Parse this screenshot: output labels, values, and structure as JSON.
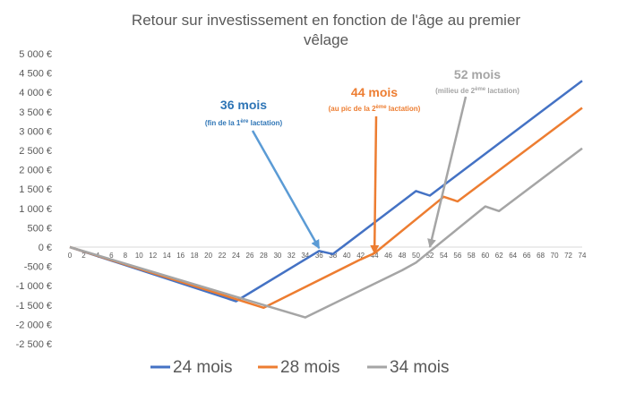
{
  "chart_data": {
    "type": "line",
    "title": "Retour sur investissement en fonction de l'âge au premier vêlage",
    "title_lines": [
      "Retour sur investissement en fonction de l'âge au premier",
      "vêlage"
    ],
    "xlabel": "",
    "ylabel": "",
    "xlim": [
      0,
      74
    ],
    "ylim": [
      -2500,
      5000
    ],
    "x_ticks": [
      0,
      2,
      4,
      6,
      8,
      10,
      12,
      14,
      16,
      18,
      20,
      22,
      24,
      26,
      28,
      30,
      32,
      34,
      36,
      38,
      40,
      42,
      44,
      46,
      48,
      50,
      52,
      54,
      56,
      58,
      60,
      62,
      64,
      66,
      68,
      70,
      72,
      74
    ],
    "y_ticks": [
      {
        "value": 5000,
        "label": "5 000 €"
      },
      {
        "value": 4500,
        "label": "4 500 €"
      },
      {
        "value": 4000,
        "label": "4 000 €"
      },
      {
        "value": 3500,
        "label": "3 500 €"
      },
      {
        "value": 3000,
        "label": "3 000 €"
      },
      {
        "value": 2500,
        "label": "2 500 €"
      },
      {
        "value": 2000,
        "label": "2 000 €"
      },
      {
        "value": 1500,
        "label": "1 500 €"
      },
      {
        "value": 1000,
        "label": "1 000 €"
      },
      {
        "value": 500,
        "label": "500 €"
      },
      {
        "value": 0,
        "label": "0 €"
      },
      {
        "value": -500,
        "label": "-500 €"
      },
      {
        "value": -1000,
        "label": "-1 000 €"
      },
      {
        "value": -1500,
        "label": "-1 500 €"
      },
      {
        "value": -2000,
        "label": "-2 000 €"
      },
      {
        "value": -2500,
        "label": "-2 500 €"
      }
    ],
    "grid": false,
    "legend_position": "bottom",
    "series": [
      {
        "name": "24 mois",
        "color": "#4472C4",
        "points": [
          [
            0,
            0
          ],
          [
            24,
            -1400
          ],
          [
            36,
            -100
          ],
          [
            38,
            -180
          ],
          [
            50,
            1450
          ],
          [
            52,
            1330
          ],
          [
            74,
            4300
          ]
        ]
      },
      {
        "name": "28 mois",
        "color": "#ED7D31",
        "points": [
          [
            0,
            0
          ],
          [
            28,
            -1570
          ],
          [
            42,
            -320
          ],
          [
            44,
            -160
          ],
          [
            54,
            1300
          ],
          [
            56,
            1180
          ],
          [
            74,
            3600
          ]
        ]
      },
      {
        "name": "34 mois",
        "color": "#A5A5A5",
        "points": [
          [
            0,
            0
          ],
          [
            34,
            -1820
          ],
          [
            48,
            -600
          ],
          [
            50,
            -400
          ],
          [
            60,
            1050
          ],
          [
            62,
            930
          ],
          [
            74,
            2550
          ]
        ]
      }
    ],
    "annotations": [
      {
        "title": "36 mois",
        "subtitle_parts": [
          "(fin de la 1",
          "ère",
          " lactation)"
        ],
        "color": "#2E75B6",
        "arrow_color": "#5B9BD5",
        "target": [
          36,
          -30
        ]
      },
      {
        "title": "44 mois",
        "subtitle_parts": [
          "(au pic de la 2",
          "ème",
          " lactation)"
        ],
        "color": "#ED7D31",
        "arrow_color": "#ED7D31",
        "target": [
          44,
          -160
        ]
      },
      {
        "title": "52 mois",
        "subtitle_parts": [
          "(milieu de 2",
          "ème",
          " lactation)"
        ],
        "color": "#A5A5A5",
        "arrow_color": "#A5A5A5",
        "target": [
          52,
          0
        ]
      }
    ]
  }
}
